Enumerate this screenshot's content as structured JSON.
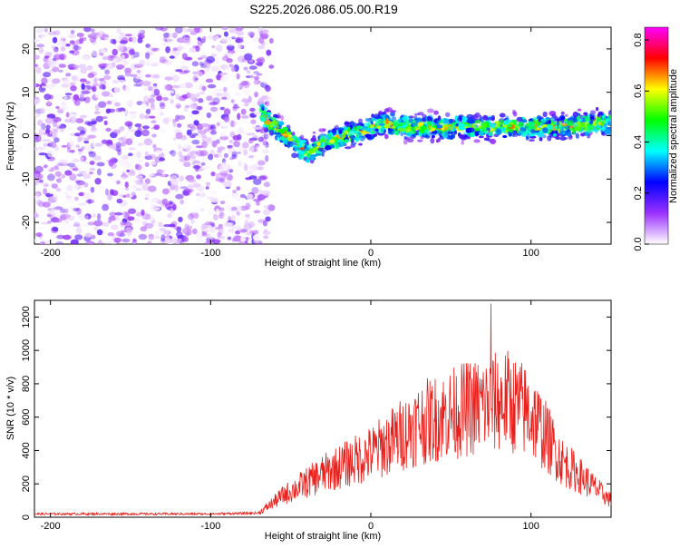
{
  "title": "S225.2026.086.05.00.R19",
  "chart_data": [
    {
      "type": "heatmap",
      "xlabel": "Height of straight line (km)",
      "ylabel": "Frequency (Hz)",
      "xlim": [
        -210,
        150
      ],
      "ylim": [
        -25,
        25
      ],
      "xticks": [
        -200,
        -100,
        0,
        100
      ],
      "yticks": [
        -20,
        -10,
        0,
        10,
        20
      ],
      "colorbar": {
        "label": "Normalized spectral amplitude",
        "range": [
          0,
          0.85
        ],
        "ticks": [
          "0.0",
          "0.2",
          "0.4",
          "0.6",
          "0.8"
        ],
        "colors": [
          "#ffffff",
          "#9b30ff",
          "#0000ff",
          "#00ffff",
          "#00ff00",
          "#ffff00",
          "#ff0000",
          "#ff00ff"
        ]
      },
      "noise_region_x": [
        -210,
        -68
      ],
      "ridge": {
        "x": [
          -68,
          -60,
          -50,
          -40,
          -35,
          -25,
          -15,
          -5,
          0,
          10,
          20,
          40,
          60,
          80,
          100,
          120,
          140,
          150
        ],
        "y": [
          5,
          2,
          -1,
          -4,
          -3,
          -1,
          0,
          1,
          2,
          3,
          2,
          2,
          2,
          2,
          2,
          2,
          3,
          3
        ]
      }
    },
    {
      "type": "line",
      "xlabel": "Height of straight line (km)",
      "ylabel": "SNR (10 * v/v)",
      "xlim": [
        -210,
        150
      ],
      "ylim": [
        0,
        1300
      ],
      "xticks": [
        -200,
        -100,
        0,
        100
      ],
      "yticks": [
        0,
        200,
        400,
        600,
        800,
        1000,
        1200
      ],
      "color": "#e8201c",
      "envelope": {
        "x": [
          -210,
          -100,
          -70,
          -55,
          -30,
          0,
          30,
          60,
          85,
          100,
          120,
          150
        ],
        "y": [
          20,
          20,
          25,
          130,
          260,
          380,
          560,
          650,
          700,
          620,
          330,
          100
        ]
      },
      "peak": {
        "x": 75,
        "y": 1280
      }
    }
  ]
}
